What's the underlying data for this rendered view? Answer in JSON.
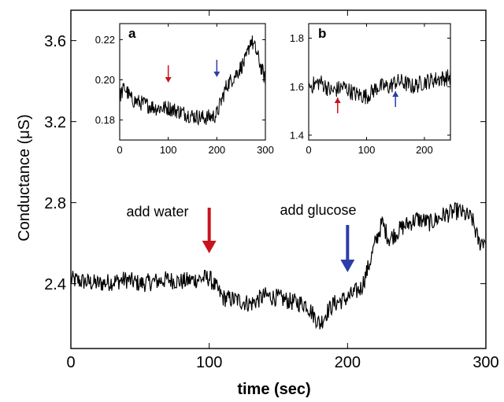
{
  "chart_data": [
    {
      "id": "main",
      "type": "line",
      "xlabel": "time (sec)",
      "ylabel": "Conductance (μS)",
      "xlim": [
        0,
        300
      ],
      "ylim": [
        2.08,
        3.75
      ],
      "xticks": [
        0,
        100,
        200,
        300
      ],
      "yticks": [
        2.4,
        2.8,
        3.2,
        3.6
      ],
      "xtick_labels": [
        "0",
        "100",
        "200",
        "300"
      ],
      "ytick_labels": [
        "2.4",
        "2.8",
        "3.2",
        "3.6"
      ],
      "grid": false,
      "series": [
        {
          "color": "#000000",
          "x": [
            0,
            10,
            20,
            30,
            40,
            50,
            60,
            70,
            80,
            90,
            100,
            105,
            110,
            120,
            130,
            140,
            150,
            160,
            170,
            180,
            185,
            190,
            200,
            210,
            215,
            220,
            225,
            230,
            240,
            250,
            260,
            270,
            280,
            290,
            295,
            300
          ],
          "y": [
            2.42,
            2.41,
            2.4,
            2.41,
            2.42,
            2.4,
            2.41,
            2.42,
            2.41,
            2.42,
            2.43,
            2.38,
            2.33,
            2.32,
            2.3,
            2.34,
            2.33,
            2.31,
            2.3,
            2.2,
            2.26,
            2.3,
            2.33,
            2.38,
            2.48,
            2.6,
            2.7,
            2.62,
            2.68,
            2.72,
            2.7,
            2.74,
            2.76,
            2.72,
            2.6,
            2.62
          ]
        }
      ],
      "annotations": [
        {
          "text": "add water",
          "x": 100,
          "arrow_color": "#c8141e"
        },
        {
          "text": "add glucose",
          "x": 200,
          "arrow_color": "#2a3ea6"
        }
      ]
    },
    {
      "id": "inset-a",
      "type": "line",
      "panel_label": "a",
      "xlim": [
        0,
        300
      ],
      "ylim": [
        0.17,
        0.228
      ],
      "xticks": [
        0,
        100,
        200,
        300
      ],
      "yticks": [
        0.18,
        0.2,
        0.22
      ],
      "xtick_labels": [
        "0",
        "100",
        "200",
        "300"
      ],
      "ytick_labels": [
        "0.18",
        "0.20",
        "0.22"
      ],
      "grid": false,
      "series": [
        {
          "color": "#000000",
          "x": [
            0,
            10,
            25,
            50,
            75,
            100,
            125,
            150,
            175,
            195,
            200,
            210,
            220,
            240,
            260,
            270,
            280,
            290,
            300
          ],
          "y": [
            0.192,
            0.196,
            0.19,
            0.188,
            0.186,
            0.186,
            0.184,
            0.182,
            0.181,
            0.182,
            0.183,
            0.19,
            0.197,
            0.203,
            0.21,
            0.22,
            0.215,
            0.207,
            0.2
          ]
        }
      ],
      "annotations": [
        {
          "x": 100,
          "arrow_color": "#c8141e"
        },
        {
          "x": 200,
          "arrow_color": "#2a3ea6"
        }
      ]
    },
    {
      "id": "inset-b",
      "type": "line",
      "panel_label": "b",
      "xlim": [
        0,
        245
      ],
      "ylim": [
        1.38,
        1.86
      ],
      "xticks": [
        0,
        100,
        200
      ],
      "yticks": [
        1.4,
        1.6,
        1.8
      ],
      "xtick_labels": [
        "0",
        "100",
        "200"
      ],
      "ytick_labels": [
        "1.4",
        "1.6",
        "1.8"
      ],
      "grid": false,
      "series": [
        {
          "color": "#000000",
          "x": [
            0,
            20,
            40,
            60,
            80,
            100,
            120,
            140,
            150,
            160,
            180,
            200,
            220,
            245
          ],
          "y": [
            1.6,
            1.62,
            1.58,
            1.6,
            1.57,
            1.56,
            1.6,
            1.6,
            1.62,
            1.62,
            1.6,
            1.62,
            1.63,
            1.64
          ]
        }
      ],
      "annotations": [
        {
          "x": 50,
          "arrow_color": "#c8141e"
        },
        {
          "x": 150,
          "arrow_color": "#2a3ea6"
        }
      ]
    }
  ]
}
